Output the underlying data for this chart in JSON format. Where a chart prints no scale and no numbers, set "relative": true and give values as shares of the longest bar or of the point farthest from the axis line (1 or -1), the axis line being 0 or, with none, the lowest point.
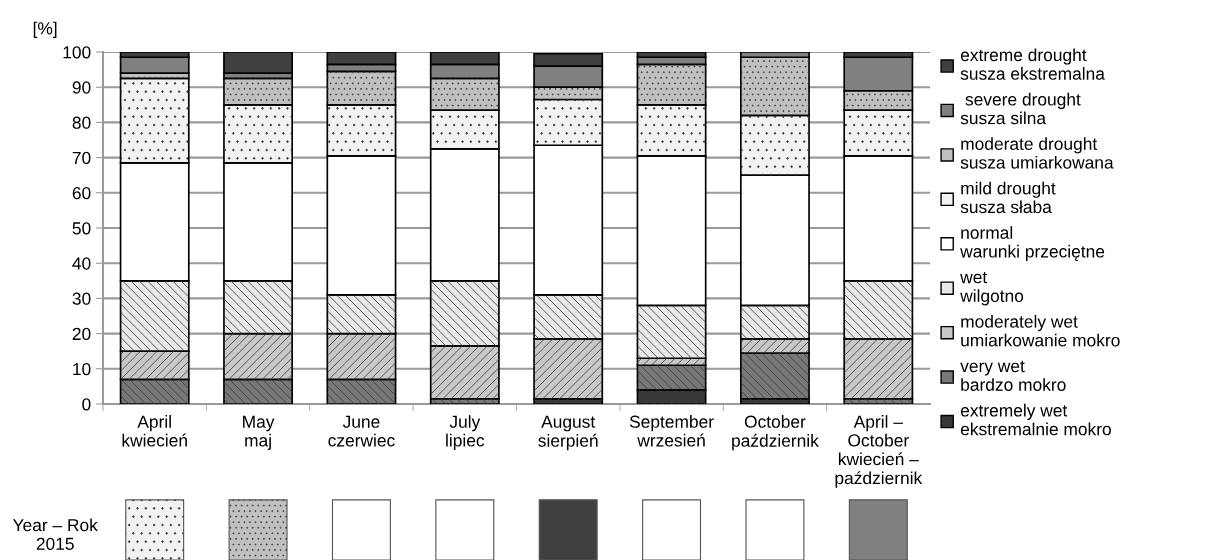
{
  "chart_data": [
    {
      "type": "bar",
      "stacked": true,
      "ylabel": "[%]",
      "categories": [
        "April\nkwiecień",
        "May\nmaj",
        "June\nczerwiec",
        "July\nlipiec",
        "August\nsierpień",
        "September\nwrzesień",
        "October\npaździernik",
        "April –\nOctober\nkwiecień –\npaździernik"
      ],
      "series": [
        {
          "name": "extremely wet\nekstremalnie mokro",
          "color": "#383838",
          "values": [
            0,
            0,
            0,
            0,
            1.5,
            4,
            1.5,
            0
          ]
        },
        {
          "name": "very wet\nbardzo mokro",
          "color": "#787878",
          "values": [
            7,
            7,
            7,
            1.5,
            0,
            7,
            13,
            1.5
          ]
        },
        {
          "name": "moderately wet\numiarkowanie mokro",
          "color": "#c8c8c8",
          "values": [
            8,
            13,
            13,
            15,
            17,
            2,
            4,
            17
          ]
        },
        {
          "name": "wet\nwilgotno",
          "color": "#e8e8e8",
          "values": [
            20,
            15,
            11,
            18.5,
            12.5,
            15,
            9.5,
            16.5
          ]
        },
        {
          "name": "normal\nwarunki przeciętne",
          "color": "#ffffff",
          "values": [
            33.5,
            33.5,
            39.5,
            37.5,
            42.5,
            42.5,
            37,
            35.5
          ]
        },
        {
          "name": "mild drought\nsusza słaba",
          "color": "#f2f2f2",
          "values": [
            24,
            16.5,
            14.5,
            11,
            13,
            14.5,
            17,
            13
          ]
        },
        {
          "name": "moderate drought\nsusza umiarkowana",
          "color": "#c0c0c0",
          "values": [
            1.5,
            7.5,
            9.5,
            9,
            3.5,
            11.5,
            16.5,
            5.5
          ]
        },
        {
          "name": " severe drought\nsusza silna",
          "color": "#808080",
          "values": [
            4.5,
            1.5,
            2,
            4,
            6,
            2,
            1.5,
            9.5
          ]
        },
        {
          "name": "extreme drought\nsusza ekstremalna",
          "color": "#404040",
          "values": [
            1.5,
            6,
            3.5,
            3.5,
            3.5,
            1.5,
            0,
            1.5
          ]
        }
      ],
      "ylim": [
        0,
        100
      ],
      "yticks": [
        0,
        10,
        20,
        30,
        40,
        50,
        60,
        70,
        80,
        90,
        100
      ],
      "grid": "y",
      "legend": "right"
    },
    {
      "type": "bar",
      "relative": true,
      "stacked": true,
      "categories": [
        null,
        null,
        null,
        null,
        null,
        null,
        null,
        null
      ],
      "annotations": [
        "Year – Rok\n2015"
      ],
      "series": [
        {
          "color": "#f2f2f2",
          "values": [
            1,
            null,
            null,
            null,
            null,
            null,
            null,
            null
          ]
        },
        {
          "color": "#c0c0c0",
          "values": [
            null,
            1,
            null,
            null,
            null,
            null,
            null,
            null
          ]
        },
        {
          "color": "#ffffff",
          "values": [
            null,
            null,
            1,
            1,
            null,
            1,
            1,
            null
          ]
        },
        {
          "color": "#404040",
          "values": [
            null,
            null,
            null,
            null,
            1,
            null,
            null,
            null
          ]
        },
        {
          "color": "#808080",
          "values": [
            null,
            null,
            null,
            null,
            null,
            null,
            null,
            1
          ]
        }
      ]
    }
  ]
}
